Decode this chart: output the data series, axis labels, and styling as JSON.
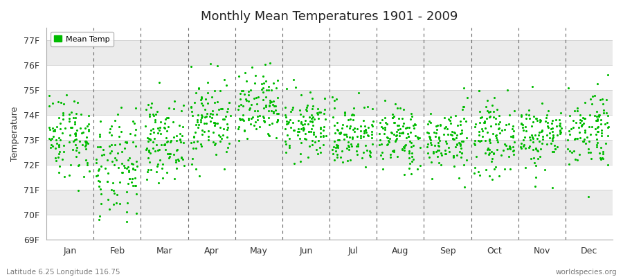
{
  "title": "Monthly Mean Temperatures 1901 - 2009",
  "ylabel": "Temperature",
  "xlabel_bottom_left": "Latitude 6.25 Longitude 116.75",
  "xlabel_bottom_right": "worldspecies.org",
  "legend_label": "Mean Temp",
  "marker_color": "#00BB00",
  "background_color": "#FFFFFF",
  "band_color_light": "#F0F0F0",
  "band_color_dark": "#E0E0E0",
  "ylim": [
    69,
    77.5
  ],
  "yticks": [
    69,
    70,
    71,
    72,
    73,
    74,
    75,
    76,
    77
  ],
  "ytick_labels": [
    "69F",
    "70F",
    "71F",
    "72F",
    "73F",
    "74F",
    "75F",
    "76F",
    "77F"
  ],
  "months": [
    "Jan",
    "Feb",
    "Mar",
    "Apr",
    "May",
    "Jun",
    "Jul",
    "Aug",
    "Sep",
    "Oct",
    "Nov",
    "Dec"
  ],
  "month_positions": [
    0.5,
    1.5,
    2.5,
    3.5,
    4.5,
    5.5,
    6.5,
    7.5,
    8.5,
    9.5,
    10.5,
    11.5
  ],
  "dashed_lines": [
    1,
    2,
    3,
    4,
    5,
    6,
    7,
    8,
    9,
    10,
    11
  ],
  "num_years": 109,
  "seed": 42,
  "monthly_means": [
    73.2,
    71.8,
    73.0,
    73.8,
    74.2,
    73.5,
    73.2,
    73.1,
    73.0,
    73.1,
    73.2,
    73.5
  ],
  "monthly_stds": [
    0.85,
    1.05,
    0.75,
    0.85,
    0.75,
    0.65,
    0.65,
    0.65,
    0.65,
    0.7,
    0.7,
    0.8
  ]
}
